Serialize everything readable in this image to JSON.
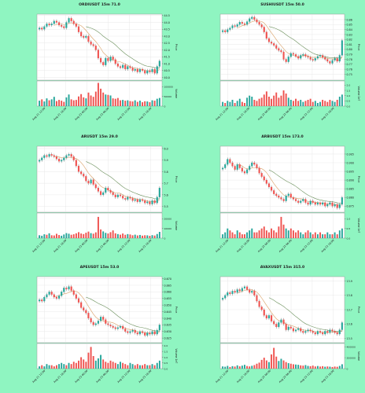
{
  "page": {
    "background": "#8ff5c1"
  },
  "style": {
    "up": "#26a69a",
    "down": "#ef5350",
    "ma_fast": "#d9a066",
    "ma_slow": "#6a8f5a",
    "panel_bg": "#ffffff",
    "grid": "#e3e3e3"
  },
  "chart_data": [
    {
      "type": "candlestick",
      "title": "ORDIUSDT 15m 71.0",
      "ylabel": "Price",
      "volume_label": "Volume",
      "ylim": [
        39.8,
        44.6
      ],
      "price_ticks": [
        "40.0",
        "40.5",
        "41.0",
        "41.5",
        "42.0",
        "42.5",
        "43.0",
        "43.5",
        "44.0",
        "44.5"
      ],
      "volume_ticks": [
        "0",
        "50000",
        "100000"
      ],
      "volume_max": 130000,
      "x_ticks": [
        "Aug 21 12:00",
        "Aug 21 18:00",
        "Aug 22 00:00",
        "Aug 22 06:00",
        "Aug 22 12:00",
        "Aug 22 18:00"
      ],
      "close": [
        43.6,
        43.5,
        43.7,
        43.9,
        43.8,
        43.9,
        44.1,
        44.0,
        43.8,
        43.7,
        43.6,
        44.0,
        44.3,
        44.1,
        43.9,
        43.7,
        43.3,
        43.0,
        42.9,
        43.0,
        42.6,
        42.4,
        42.3,
        42.0,
        41.4,
        41.1,
        40.9,
        41.4,
        41.2,
        41.5,
        41.3,
        41.0,
        40.8,
        40.7,
        40.9,
        40.6,
        40.8,
        40.7,
        40.5,
        40.6,
        40.4,
        40.6,
        40.5,
        40.3,
        40.5,
        40.4,
        40.6,
        40.3,
        40.8,
        41.2
      ],
      "volume": [
        28000,
        35000,
        24000,
        40000,
        30000,
        35000,
        48000,
        26000,
        32000,
        28000,
        22000,
        45000,
        60000,
        35000,
        30000,
        32000,
        50000,
        62000,
        45000,
        40000,
        70000,
        55000,
        48000,
        75000,
        120000,
        90000,
        70000,
        60000,
        58000,
        55000,
        40000,
        38000,
        42000,
        30000,
        32000,
        28000,
        30000,
        26000,
        24000,
        30000,
        22000,
        28000,
        20000,
        25000,
        24000,
        20000,
        30000,
        28000,
        38000,
        42000
      ]
    },
    {
      "type": "candlestick",
      "title": "SUSHIUSDT 15m 50.0",
      "ylabel": "Price",
      "volume_label": "Volume  1e7",
      "ylim": [
        0.738,
        0.871
      ],
      "price_ticks": [
        "0.75",
        "0.76",
        "0.77",
        "0.78",
        "0.79",
        "0.80",
        "0.81",
        "0.82",
        "0.83",
        "0.84",
        "0.85",
        "0.86"
      ],
      "volume_ticks": [
        "0.0",
        "0.5",
        "1.0",
        "1.5",
        "2.0"
      ],
      "volume_max": 2.4,
      "x_ticks": [
        "Aug 21 12:00",
        "Aug 21 18:00",
        "Aug 22 00:00",
        "Aug 22 06:00",
        "Aug 22 12:00",
        "Aug 22 18:00"
      ],
      "close": [
        0.838,
        0.835,
        0.84,
        0.843,
        0.848,
        0.846,
        0.85,
        0.855,
        0.852,
        0.85,
        0.856,
        0.862,
        0.865,
        0.86,
        0.855,
        0.85,
        0.845,
        0.835,
        0.822,
        0.815,
        0.812,
        0.808,
        0.802,
        0.798,
        0.795,
        0.78,
        0.775,
        0.785,
        0.792,
        0.79,
        0.786,
        0.782,
        0.788,
        0.79,
        0.786,
        0.784,
        0.78,
        0.778,
        0.782,
        0.786,
        0.788,
        0.784,
        0.78,
        0.776,
        0.772,
        0.778,
        0.782,
        0.776,
        0.788,
        0.818
      ],
      "volume": [
        0.4,
        0.3,
        0.5,
        0.4,
        0.6,
        0.3,
        0.5,
        0.7,
        0.4,
        0.3,
        0.8,
        1.0,
        0.9,
        0.6,
        0.5,
        0.7,
        0.8,
        1.1,
        1.4,
        0.9,
        0.7,
        1.0,
        1.3,
        0.8,
        1.0,
        1.5,
        1.2,
        0.8,
        0.6,
        0.5,
        0.7,
        0.5,
        0.6,
        0.4,
        0.5,
        0.6,
        0.7,
        0.4,
        0.5,
        0.3,
        0.4,
        0.6,
        0.5,
        0.4,
        0.6,
        0.5,
        0.4,
        0.6,
        0.9,
        1.1
      ]
    },
    {
      "type": "candlestick",
      "title": "ARUSDT 15m 29.0",
      "ylabel": "Price",
      "volume_label": "Volume",
      "ylim": [
        5.45,
        6.02
      ],
      "price_ticks": [
        "5.5",
        "5.6",
        "5.7",
        "5.8",
        "5.9",
        "6.0"
      ],
      "volume_ticks": [
        "0",
        "10000",
        "20000"
      ],
      "volume_max": 26000,
      "x_ticks": [
        "Aug 21 12:00",
        "Aug 21 18:00",
        "Aug 22 00:00",
        "Aug 22 06:00",
        "Aug 22 12:00",
        "Aug 22 18:00"
      ],
      "close": [
        5.9,
        5.92,
        5.94,
        5.93,
        5.95,
        5.94,
        5.93,
        5.91,
        5.89,
        5.9,
        5.92,
        5.94,
        5.95,
        5.93,
        5.9,
        5.85,
        5.8,
        5.78,
        5.76,
        5.72,
        5.7,
        5.73,
        5.69,
        5.66,
        5.63,
        5.6,
        5.62,
        5.66,
        5.64,
        5.62,
        5.6,
        5.58,
        5.6,
        5.59,
        5.57,
        5.56,
        5.58,
        5.57,
        5.55,
        5.56,
        5.54,
        5.56,
        5.55,
        5.53,
        5.54,
        5.52,
        5.55,
        5.53,
        5.58,
        5.66
      ],
      "volume": [
        3000,
        2500,
        4000,
        3500,
        5000,
        3000,
        2800,
        4500,
        3200,
        2500,
        3800,
        5200,
        4600,
        3500,
        4000,
        5000,
        6200,
        4800,
        4200,
        5600,
        6800,
        5200,
        4600,
        6000,
        22000,
        9000,
        7000,
        5500,
        4800,
        6200,
        8000,
        5000,
        4200,
        3600,
        4800,
        3500,
        4200,
        3800,
        3000,
        3600,
        2800,
        3300,
        2600,
        3000,
        2900,
        2400,
        3100,
        2700,
        4300,
        6500
      ]
    },
    {
      "type": "candlestick",
      "title": "ARBUSDT 15m 173.0",
      "ylabel": "Price",
      "volume_label": "Volume  1e7",
      "ylim": [
        0.8715,
        0.9095
      ],
      "price_ticks": [
        "0.875",
        "0.880",
        "0.885",
        "0.890",
        "0.895",
        "0.900",
        "0.905"
      ],
      "volume_ticks": [
        "0.0",
        "0.5",
        "1.0"
      ],
      "volume_max": 1.3,
      "x_ticks": [
        "Aug 21 12:00",
        "Aug 21 18:00",
        "Aug 22 00:00",
        "Aug 22 06:00",
        "Aug 22 12:00",
        "Aug 22 18:00"
      ],
      "close": [
        0.897,
        0.899,
        0.902,
        0.9,
        0.898,
        0.896,
        0.899,
        0.897,
        0.895,
        0.894,
        0.896,
        0.898,
        0.9,
        0.899,
        0.897,
        0.894,
        0.892,
        0.89,
        0.888,
        0.886,
        0.884,
        0.882,
        0.881,
        0.88,
        0.879,
        0.878,
        0.881,
        0.882,
        0.88,
        0.879,
        0.878,
        0.877,
        0.878,
        0.879,
        0.877,
        0.876,
        0.878,
        0.877,
        0.876,
        0.877,
        0.876,
        0.877,
        0.875,
        0.876,
        0.877,
        0.875,
        0.876,
        0.874,
        0.876,
        0.88
      ],
      "volume": [
        0.2,
        0.3,
        0.5,
        0.4,
        0.3,
        0.2,
        0.4,
        0.3,
        0.2,
        0.2,
        0.3,
        0.4,
        0.5,
        0.3,
        0.3,
        0.4,
        0.5,
        0.6,
        0.4,
        0.3,
        0.5,
        0.4,
        0.3,
        0.6,
        1.1,
        0.7,
        0.5,
        0.4,
        0.5,
        0.4,
        0.3,
        0.4,
        0.3,
        0.2,
        0.3,
        0.4,
        0.3,
        0.2,
        0.3,
        0.2,
        0.3,
        0.2,
        0.2,
        0.3,
        0.2,
        0.2,
        0.3,
        0.2,
        0.4,
        0.5
      ]
    },
    {
      "type": "candlestick",
      "title": "APEUSDT 15m 53.0",
      "ylabel": "Price",
      "volume_label": "Volume  1e7",
      "ylim": [
        0.6215,
        0.6715
      ],
      "price_ticks": [
        "0.625",
        "0.630",
        "0.635",
        "0.640",
        "0.645",
        "0.650",
        "0.655",
        "0.660",
        "0.665",
        "0.670"
      ],
      "volume_ticks": [
        "0.0",
        "0.5",
        "1.0",
        "1.5",
        "2.0"
      ],
      "volume_max": 2.2,
      "x_ticks": [
        "Aug 21 12:00",
        "Aug 21 18:00",
        "Aug 22 00:00",
        "Aug 22 06:00",
        "Aug 22 12:00",
        "Aug 22 18:00"
      ],
      "close": [
        0.654,
        0.653,
        0.656,
        0.658,
        0.66,
        0.658,
        0.656,
        0.655,
        0.657,
        0.66,
        0.663,
        0.662,
        0.664,
        0.661,
        0.658,
        0.655,
        0.652,
        0.648,
        0.646,
        0.644,
        0.64,
        0.637,
        0.635,
        0.636,
        0.638,
        0.641,
        0.639,
        0.636,
        0.635,
        0.634,
        0.633,
        0.632,
        0.633,
        0.634,
        0.632,
        0.63,
        0.629,
        0.63,
        0.631,
        0.629,
        0.628,
        0.63,
        0.629,
        0.627,
        0.629,
        0.628,
        0.63,
        0.628,
        0.631,
        0.635
      ],
      "volume": [
        0.2,
        0.3,
        0.2,
        0.4,
        0.3,
        0.3,
        0.2,
        0.3,
        0.4,
        0.5,
        0.4,
        0.3,
        0.5,
        0.4,
        0.6,
        0.5,
        0.7,
        1.0,
        0.8,
        0.6,
        1.4,
        1.9,
        1.1,
        0.7,
        0.9,
        1.2,
        0.8,
        0.6,
        0.5,
        0.7,
        0.6,
        0.5,
        0.4,
        0.6,
        0.5,
        0.4,
        0.3,
        0.5,
        0.4,
        0.3,
        0.4,
        0.3,
        0.3,
        0.4,
        0.3,
        0.3,
        0.4,
        0.3,
        0.5,
        0.7
      ]
    },
    {
      "type": "candlestick",
      "title": "AVAXUSDT 15m 315.0",
      "ylabel": "Price",
      "volume_label": "Volume",
      "ylim": [
        13.47,
        13.93
      ],
      "price_ticks": [
        "13.5",
        "13.6",
        "13.7",
        "13.8",
        "13.9"
      ],
      "volume_ticks": [
        "0",
        "200000",
        "400000"
      ],
      "volume_max": 460000,
      "x_ticks": [
        "Aug 21 12:00",
        "Aug 21 18:00",
        "Aug 22 00:00",
        "Aug 22 06:00",
        "Aug 22 12:00",
        "Aug 22 18:00"
      ],
      "close": [
        13.78,
        13.8,
        13.82,
        13.81,
        13.83,
        13.82,
        13.84,
        13.83,
        13.85,
        13.86,
        13.84,
        13.82,
        13.83,
        13.8,
        13.76,
        13.72,
        13.7,
        13.66,
        13.64,
        13.66,
        13.62,
        13.6,
        13.58,
        13.61,
        13.63,
        13.6,
        13.56,
        13.58,
        13.57,
        13.55,
        13.56,
        13.57,
        13.55,
        13.54,
        13.55,
        13.56,
        13.55,
        13.54,
        13.53,
        13.55,
        13.54,
        13.53,
        13.55,
        13.54,
        13.56,
        13.55,
        13.54,
        13.53,
        13.56,
        13.61
      ],
      "volume": [
        40000,
        35000,
        50000,
        30000,
        45000,
        38000,
        60000,
        42000,
        55000,
        70000,
        48000,
        40000,
        52000,
        65000,
        90000,
        110000,
        160000,
        200000,
        150000,
        120000,
        260000,
        380000,
        220000,
        140000,
        180000,
        150000,
        120000,
        100000,
        90000,
        80000,
        75000,
        70000,
        60000,
        55000,
        65000,
        50000,
        45000,
        55000,
        40000,
        48000,
        38000,
        45000,
        35000,
        40000,
        36000,
        30000,
        38000,
        34000,
        50000,
        80000
      ]
    }
  ]
}
